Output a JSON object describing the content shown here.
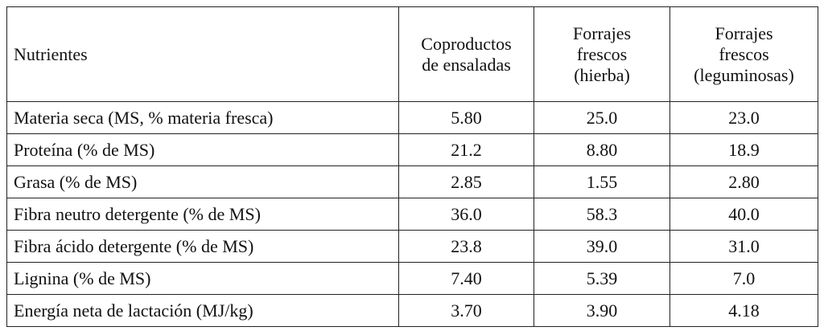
{
  "table": {
    "header": [
      [
        "Nutrientes"
      ],
      [
        "Coproductos",
        "de ensaladas"
      ],
      [
        "Forrajes",
        "frescos",
        "(hierba)"
      ],
      [
        "Forrajes",
        "frescos",
        "(leguminosas)"
      ]
    ],
    "rows": [
      [
        "Materia seca (MS, % materia fresca)",
        "5.80",
        "25.0",
        "23.0"
      ],
      [
        "Proteína (% de MS)",
        "21.2",
        "8.80",
        "18.9"
      ],
      [
        "Grasa (% de MS)",
        "2.85",
        "1.55",
        "2.80"
      ],
      [
        "Fibra neutro detergente (% de MS)",
        "36.0",
        "58.3",
        "40.0"
      ],
      [
        "Fibra ácido detergente (% de MS)",
        "23.8",
        "39.0",
        "31.0"
      ],
      [
        "Lignina (% de MS)",
        "7.40",
        "5.39",
        "7.0"
      ],
      [
        "Energía neta de lactación (MJ/kg)",
        "3.70",
        "3.90",
        "4.18"
      ]
    ]
  }
}
